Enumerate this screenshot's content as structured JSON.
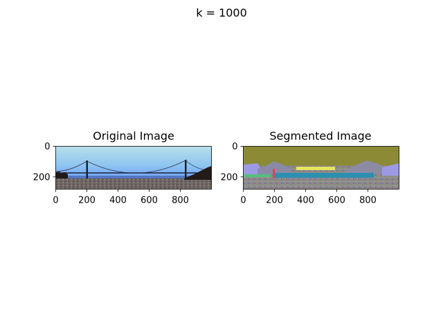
{
  "figure": {
    "suptitle": "k = 1000"
  },
  "chart_data": [
    {
      "type": "image",
      "title": "Original Image",
      "xlim": [
        0,
        1000
      ],
      "ylim": [
        280,
        0
      ],
      "xticks": [
        0,
        200,
        400,
        600,
        800
      ],
      "yticks": [
        0,
        200
      ],
      "xticklabels": [
        "0",
        "200",
        "400",
        "600",
        "800"
      ],
      "yticklabels": [
        "0",
        "200"
      ],
      "colors": {
        "sky_top": "#a9d7e8",
        "sky_bottom": "#6f9fff",
        "ground": "#6a6461",
        "bridge": "#1a2430",
        "hill": "#2a1f1c"
      }
    },
    {
      "type": "image",
      "title": "Segmented Image",
      "xlim": [
        0,
        1000
      ],
      "ylim": [
        280,
        0
      ],
      "xticks": [
        0,
        200,
        400,
        600,
        800
      ],
      "yticks": [
        0,
        200
      ],
      "xticklabels": [
        "0",
        "200",
        "400",
        "600",
        "800"
      ],
      "yticklabels": [
        "0",
        "200"
      ],
      "colors": {
        "sky": "#8c8a34",
        "water": "#2a8fb0",
        "haze": "#9a9ae0",
        "highlight": "#e8e85a",
        "noise": "#8f8a86"
      }
    }
  ]
}
